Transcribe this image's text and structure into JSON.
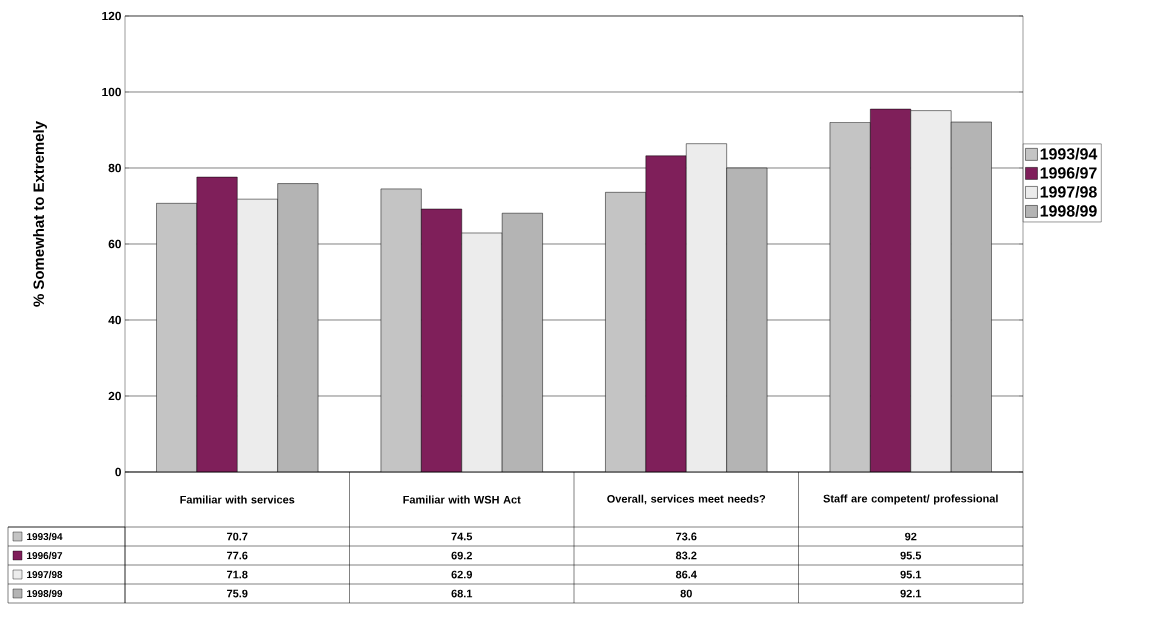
{
  "chart_data": {
    "type": "bar",
    "ylabel": "% Somewhat to Extremely",
    "categories": [
      "Familiar with services",
      "Familiar with WSH Act",
      "Overall, services meet needs?",
      "Staff are competent/ professional"
    ],
    "series": [
      {
        "name": "1993/94",
        "color": "#c4c4c4",
        "values": [
          70.7,
          74.5,
          73.6,
          92
        ]
      },
      {
        "name": "1996/97",
        "color": "#7f1f5a",
        "values": [
          77.6,
          69.2,
          83.2,
          95.5
        ]
      },
      {
        "name": "1997/98",
        "color": "#ececec",
        "values": [
          71.8,
          62.9,
          86.4,
          95.1
        ]
      },
      {
        "name": "1998/99",
        "color": "#b4b4b4",
        "values": [
          75.9,
          68.1,
          80,
          92.1
        ]
      }
    ],
    "ylim": [
      0,
      120
    ],
    "yticks": [
      0,
      20,
      40,
      60,
      80,
      100,
      120
    ],
    "grid": "y",
    "legend": "right",
    "data_labels": true
  }
}
